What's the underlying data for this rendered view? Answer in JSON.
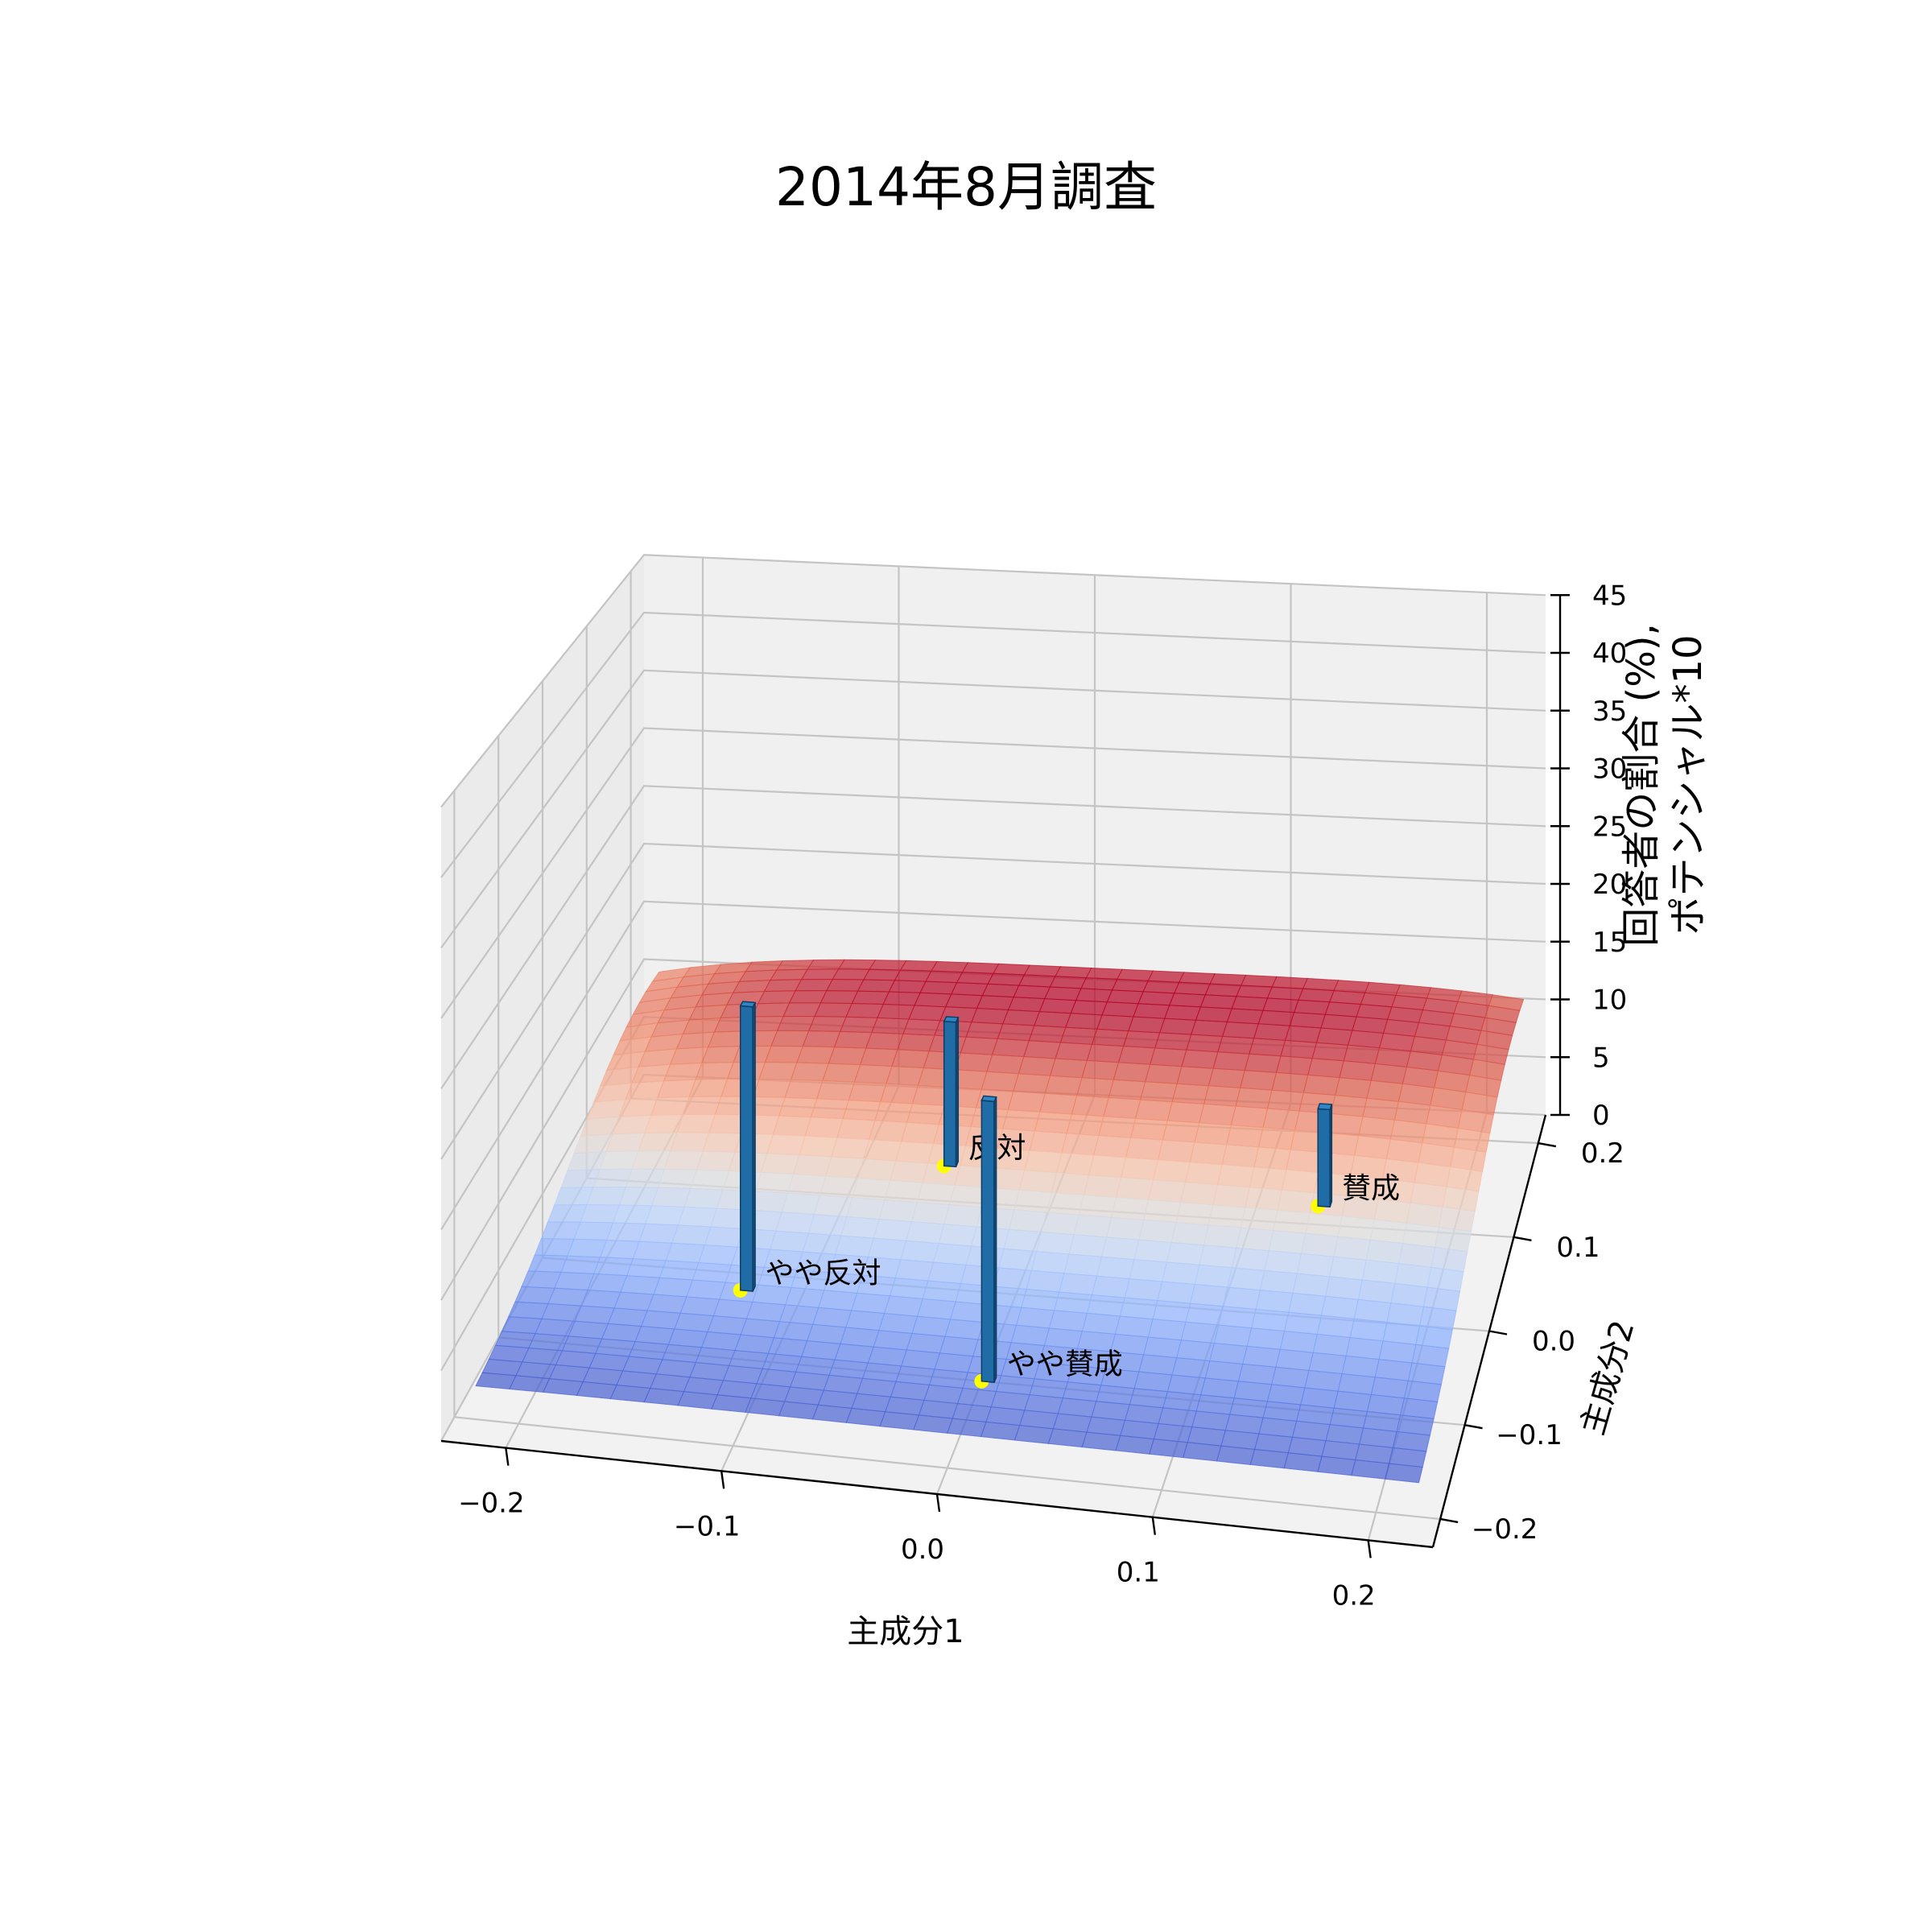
{
  "chart_data": {
    "type": "3d-bar-surface",
    "title": "2014年8月調査",
    "xlabel": "主成分1",
    "ylabel": "主成分2",
    "zlabel_lines": [
      "回答者の割合 (%),",
      "ポテンシャル*10"
    ],
    "x_ticks": [
      "−0.2",
      "−0.1",
      "0.0",
      "0.1",
      "0.2"
    ],
    "y_ticks": [
      "−0.2",
      "−0.1",
      "0.0",
      "0.1",
      "0.2"
    ],
    "z_ticks": [
      "0",
      "5",
      "10",
      "15",
      "20",
      "25",
      "30",
      "35",
      "40",
      "45"
    ],
    "xlim": [
      -0.23,
      0.23
    ],
    "ylim": [
      -0.23,
      0.23
    ],
    "zlim": [
      0,
      45
    ],
    "grid": true,
    "bars": [
      {
        "label": "やや反対",
        "x": -0.13,
        "y": -0.02,
        "value": 22
      },
      {
        "label": "反対",
        "x": -0.06,
        "y": 0.14,
        "value": 12
      },
      {
        "label": "やや賛成",
        "x": 0.0,
        "y": -0.1,
        "value": 21
      },
      {
        "label": "賛成",
        "x": 0.13,
        "y": 0.12,
        "value": 8
      }
    ],
    "surface": {
      "colormap": "coolwarm",
      "peak": 12,
      "min": 2
    }
  }
}
